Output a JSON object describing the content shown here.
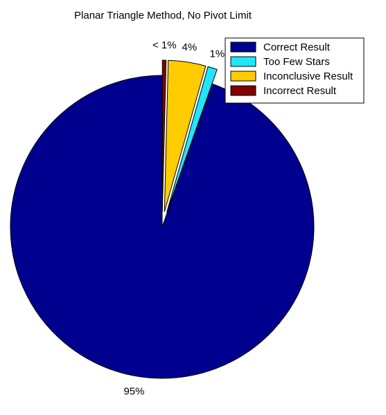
{
  "chart_data": {
    "type": "pie",
    "title": "Planar Triangle Method, No Pivot Limit",
    "slices": [
      {
        "label": "Correct Result",
        "value": 95,
        "pct_label": "95%",
        "color": "#00008f",
        "exploded": false
      },
      {
        "label": "Too Few Stars",
        "value": 1,
        "pct_label": "1%",
        "color": "#1fe5ff",
        "exploded": true
      },
      {
        "label": "Inconclusive Result",
        "value": 4,
        "pct_label": "4%",
        "color": "#ffcc00",
        "exploded": true
      },
      {
        "label": "Incorrect Result",
        "value": 0.4,
        "pct_label": "< 1%",
        "color": "#800000",
        "exploded": true
      }
    ],
    "legend": {
      "placement": "top-right",
      "entries": [
        "Correct Result",
        "Too Few Stars",
        "Inconclusive Result",
        "Incorrect Result"
      ]
    }
  }
}
